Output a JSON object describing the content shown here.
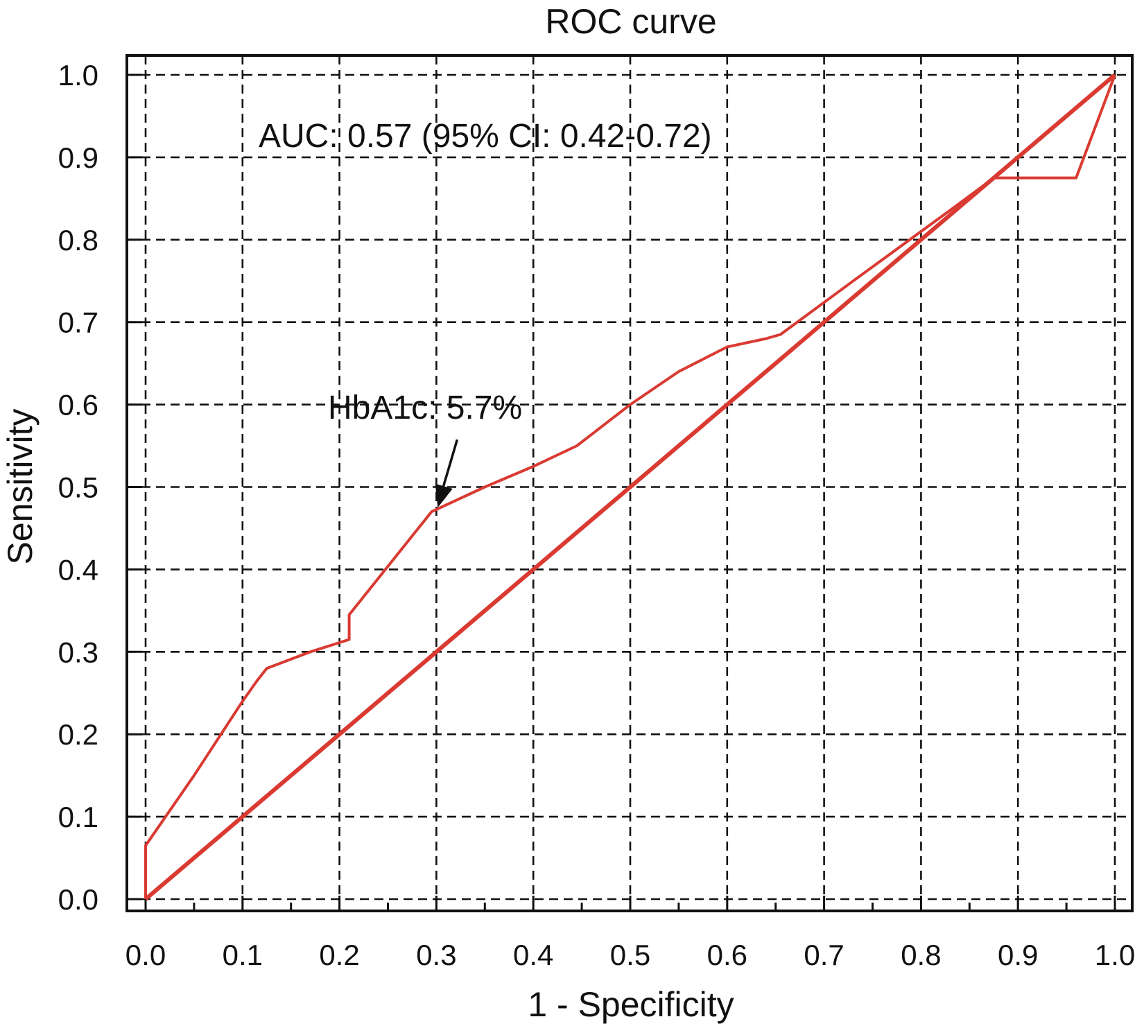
{
  "chart_data": {
    "type": "line",
    "title": "ROC curve",
    "xlabel": "1 - Specificity",
    "ylabel": "Sensitivity",
    "xlim": [
      0,
      1
    ],
    "ylim": [
      0,
      1
    ],
    "grid": true,
    "x_ticks": [
      "0.0",
      "0.1",
      "0.2",
      "0.3",
      "0.4",
      "0.5",
      "0.6",
      "0.7",
      "0.8",
      "0.9",
      "1.0"
    ],
    "y_ticks": [
      "0.0",
      "0.1",
      "0.2",
      "0.3",
      "0.4",
      "0.5",
      "0.6",
      "0.7",
      "0.8",
      "0.9",
      "1.0"
    ],
    "colors": {
      "curve": "#d93a32",
      "reference": "#d93a32",
      "grid": "#111111"
    },
    "series": [
      {
        "role": "roc-curve",
        "x": [
          0.0,
          0.0,
          0.05,
          0.1,
          0.115,
          0.125,
          0.17,
          0.21,
          0.21,
          0.295,
          0.35,
          0.4,
          0.445,
          0.5,
          0.55,
          0.6,
          0.64,
          0.655,
          0.73,
          0.8,
          0.835,
          0.875,
          0.96,
          1.0
        ],
        "y": [
          0.0,
          0.065,
          0.15,
          0.24,
          0.265,
          0.28,
          0.3,
          0.315,
          0.345,
          0.47,
          0.5,
          0.525,
          0.55,
          0.6,
          0.64,
          0.67,
          0.68,
          0.685,
          0.75,
          0.81,
          0.84,
          0.875,
          0.875,
          1.0
        ]
      },
      {
        "role": "reference-line",
        "x": [
          0.0,
          1.0
        ],
        "y": [
          0.0,
          1.0
        ]
      }
    ],
    "annotations": [
      {
        "text": "AUC: 0.57 (95% CI: 0.42-0.72)"
      },
      {
        "text": "HbA1c: 5.7%",
        "points_to": {
          "x": 0.3,
          "y": 0.47
        }
      }
    ]
  }
}
